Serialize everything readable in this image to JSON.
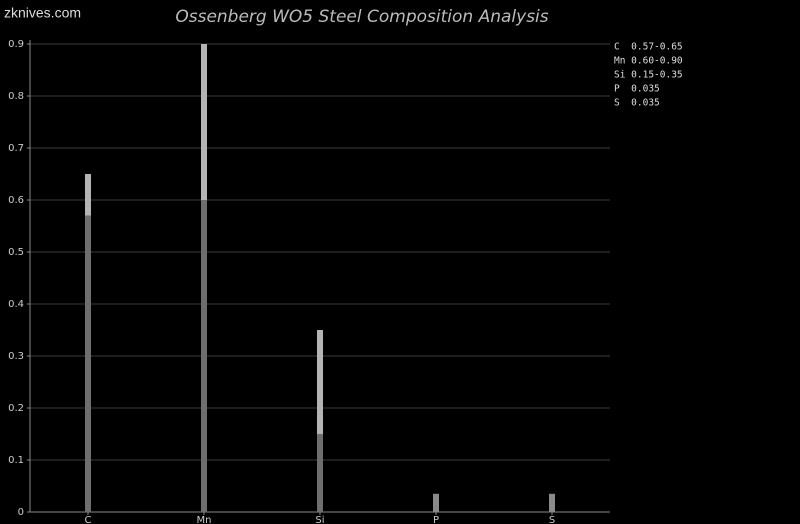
{
  "watermark": "zknives.com",
  "chart_data": {
    "type": "range-bar",
    "title": "Ossenberg WO5 Steel Composition Analysis",
    "categories": [
      "C",
      "Mn",
      "Si",
      "P",
      "S"
    ],
    "low": [
      0.57,
      0.6,
      0.15,
      null,
      null
    ],
    "high": [
      0.65,
      0.9,
      0.35,
      0.035,
      0.035
    ],
    "low_color": "#6e6e6e",
    "high_color": "#b4b4b4",
    "single_color": "#8a8a8a",
    "ylim": [
      0,
      0.9
    ],
    "yticks": [
      0,
      0.1,
      0.2,
      0.3,
      0.4,
      0.5,
      0.6,
      0.7,
      0.8,
      0.9
    ],
    "grid": true,
    "legend": [
      "C  0.57-0.65",
      "Mn 0.60-0.90",
      "Si 0.15-0.35",
      "P  0.035",
      "S  0.035"
    ],
    "legend_position": "right"
  }
}
